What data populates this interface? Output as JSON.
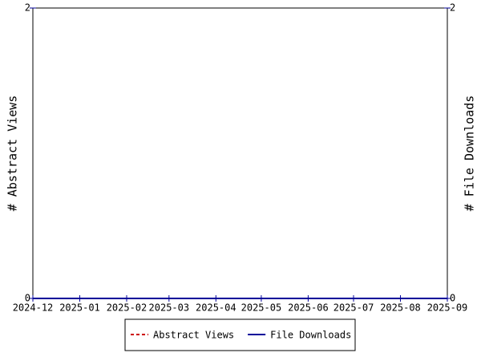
{
  "chart_data": {
    "type": "line",
    "x": [
      "2024-12",
      "2025-01",
      "2025-02",
      "2025-03",
      "2025-04",
      "2025-05",
      "2025-06",
      "2025-07",
      "2025-08",
      "2025-09"
    ],
    "xlim": [
      "2024-12",
      "2025-09"
    ],
    "xticks": [
      "2024-12",
      "2025-01",
      "2025-02",
      "2025-03",
      "2025-04",
      "2025-05",
      "2025-06",
      "2025-07",
      "2025-08",
      "2025-09"
    ],
    "ylabel": "# Abstract Views",
    "y2label": "# File Downloads",
    "ylim": [
      0,
      2
    ],
    "yticks": [
      0,
      2
    ],
    "y2lim": [
      0,
      2
    ],
    "y2ticks": [
      0,
      2
    ],
    "series": [
      {
        "name": "Abstract Views",
        "color": "#cc0000",
        "dashed": true,
        "values": [
          0,
          0,
          0,
          0,
          0,
          0,
          0,
          0,
          0,
          0
        ]
      },
      {
        "name": "File Downloads",
        "color": "#000099",
        "axis": "y2",
        "values": [
          0,
          0,
          0,
          0,
          0,
          0,
          0,
          0,
          0,
          0
        ]
      }
    ]
  }
}
